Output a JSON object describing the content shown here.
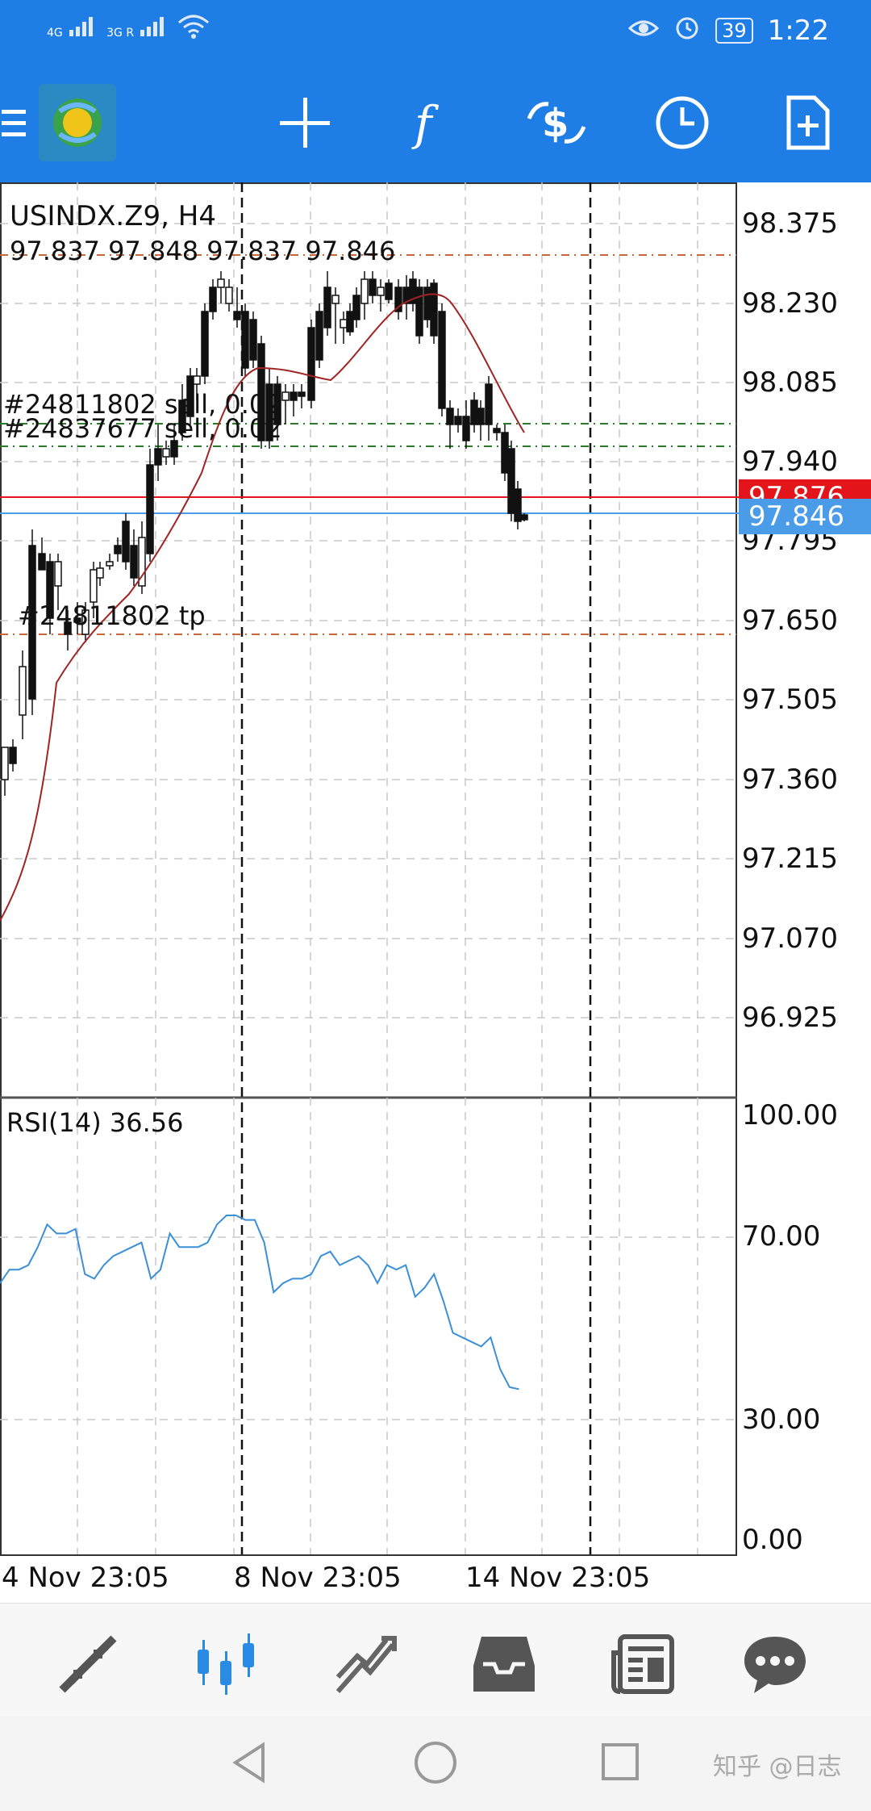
{
  "status_bar": {
    "signal1": "4G",
    "signal2": "3G R",
    "battery": "39",
    "time": "1:22"
  },
  "toolbar": {
    "buttons": [
      "menu",
      "crosshair",
      "indicators",
      "trade",
      "history",
      "new-order"
    ]
  },
  "chart": {
    "symbol_timeframe": "USINDX.Z9, H4",
    "ohlc": "97.837 97.848 97.837 97.846",
    "order_labels": {
      "sell1": "#24811802 sell, 0.02",
      "sell2": "#24837677 sell, 0.02",
      "tp": "#24811802 tp"
    },
    "price_axis": [
      "98.375",
      "98.230",
      "98.085",
      "97.940",
      "97.795",
      "97.650",
      "97.505",
      "97.360",
      "97.215",
      "97.070",
      "96.925"
    ],
    "current_ask": "97.876",
    "current_bid": "97.846",
    "ask_color": "#e3151b",
    "bid_color": "#4a9be8"
  },
  "rsi": {
    "label": "RSI(14) 36.56",
    "axis": [
      "100.00",
      "70.00",
      "30.00",
      "0.00"
    ],
    "line_color": "#3a8fd6"
  },
  "date_axis": {
    "labels": [
      "4 Nov 23:05",
      "8 Nov 23:05",
      "14 Nov 23:05"
    ]
  },
  "chart_data": {
    "type": "line",
    "title": "USINDX.Z9, H4",
    "series": [
      {
        "name": "RSI(14)",
        "values": [
          60,
          63,
          63,
          64,
          68,
          73,
          71,
          71,
          72,
          62,
          61,
          64,
          66,
          67,
          68,
          69,
          61,
          63,
          71,
          68,
          68,
          68,
          69,
          73,
          75,
          75,
          74,
          74,
          69,
          58,
          60,
          61,
          61,
          62,
          66,
          67,
          64,
          65,
          66,
          64,
          60,
          64,
          63,
          64,
          57,
          59,
          62,
          56,
          49,
          48,
          47,
          46,
          48,
          41,
          37,
          36.56
        ]
      }
    ],
    "ylim": [
      0,
      100
    ]
  },
  "bottom_nav": {
    "items": [
      "quotes",
      "charts",
      "trade",
      "history",
      "news",
      "messages"
    ],
    "active": "charts"
  },
  "watermark": "知乎 @日志"
}
